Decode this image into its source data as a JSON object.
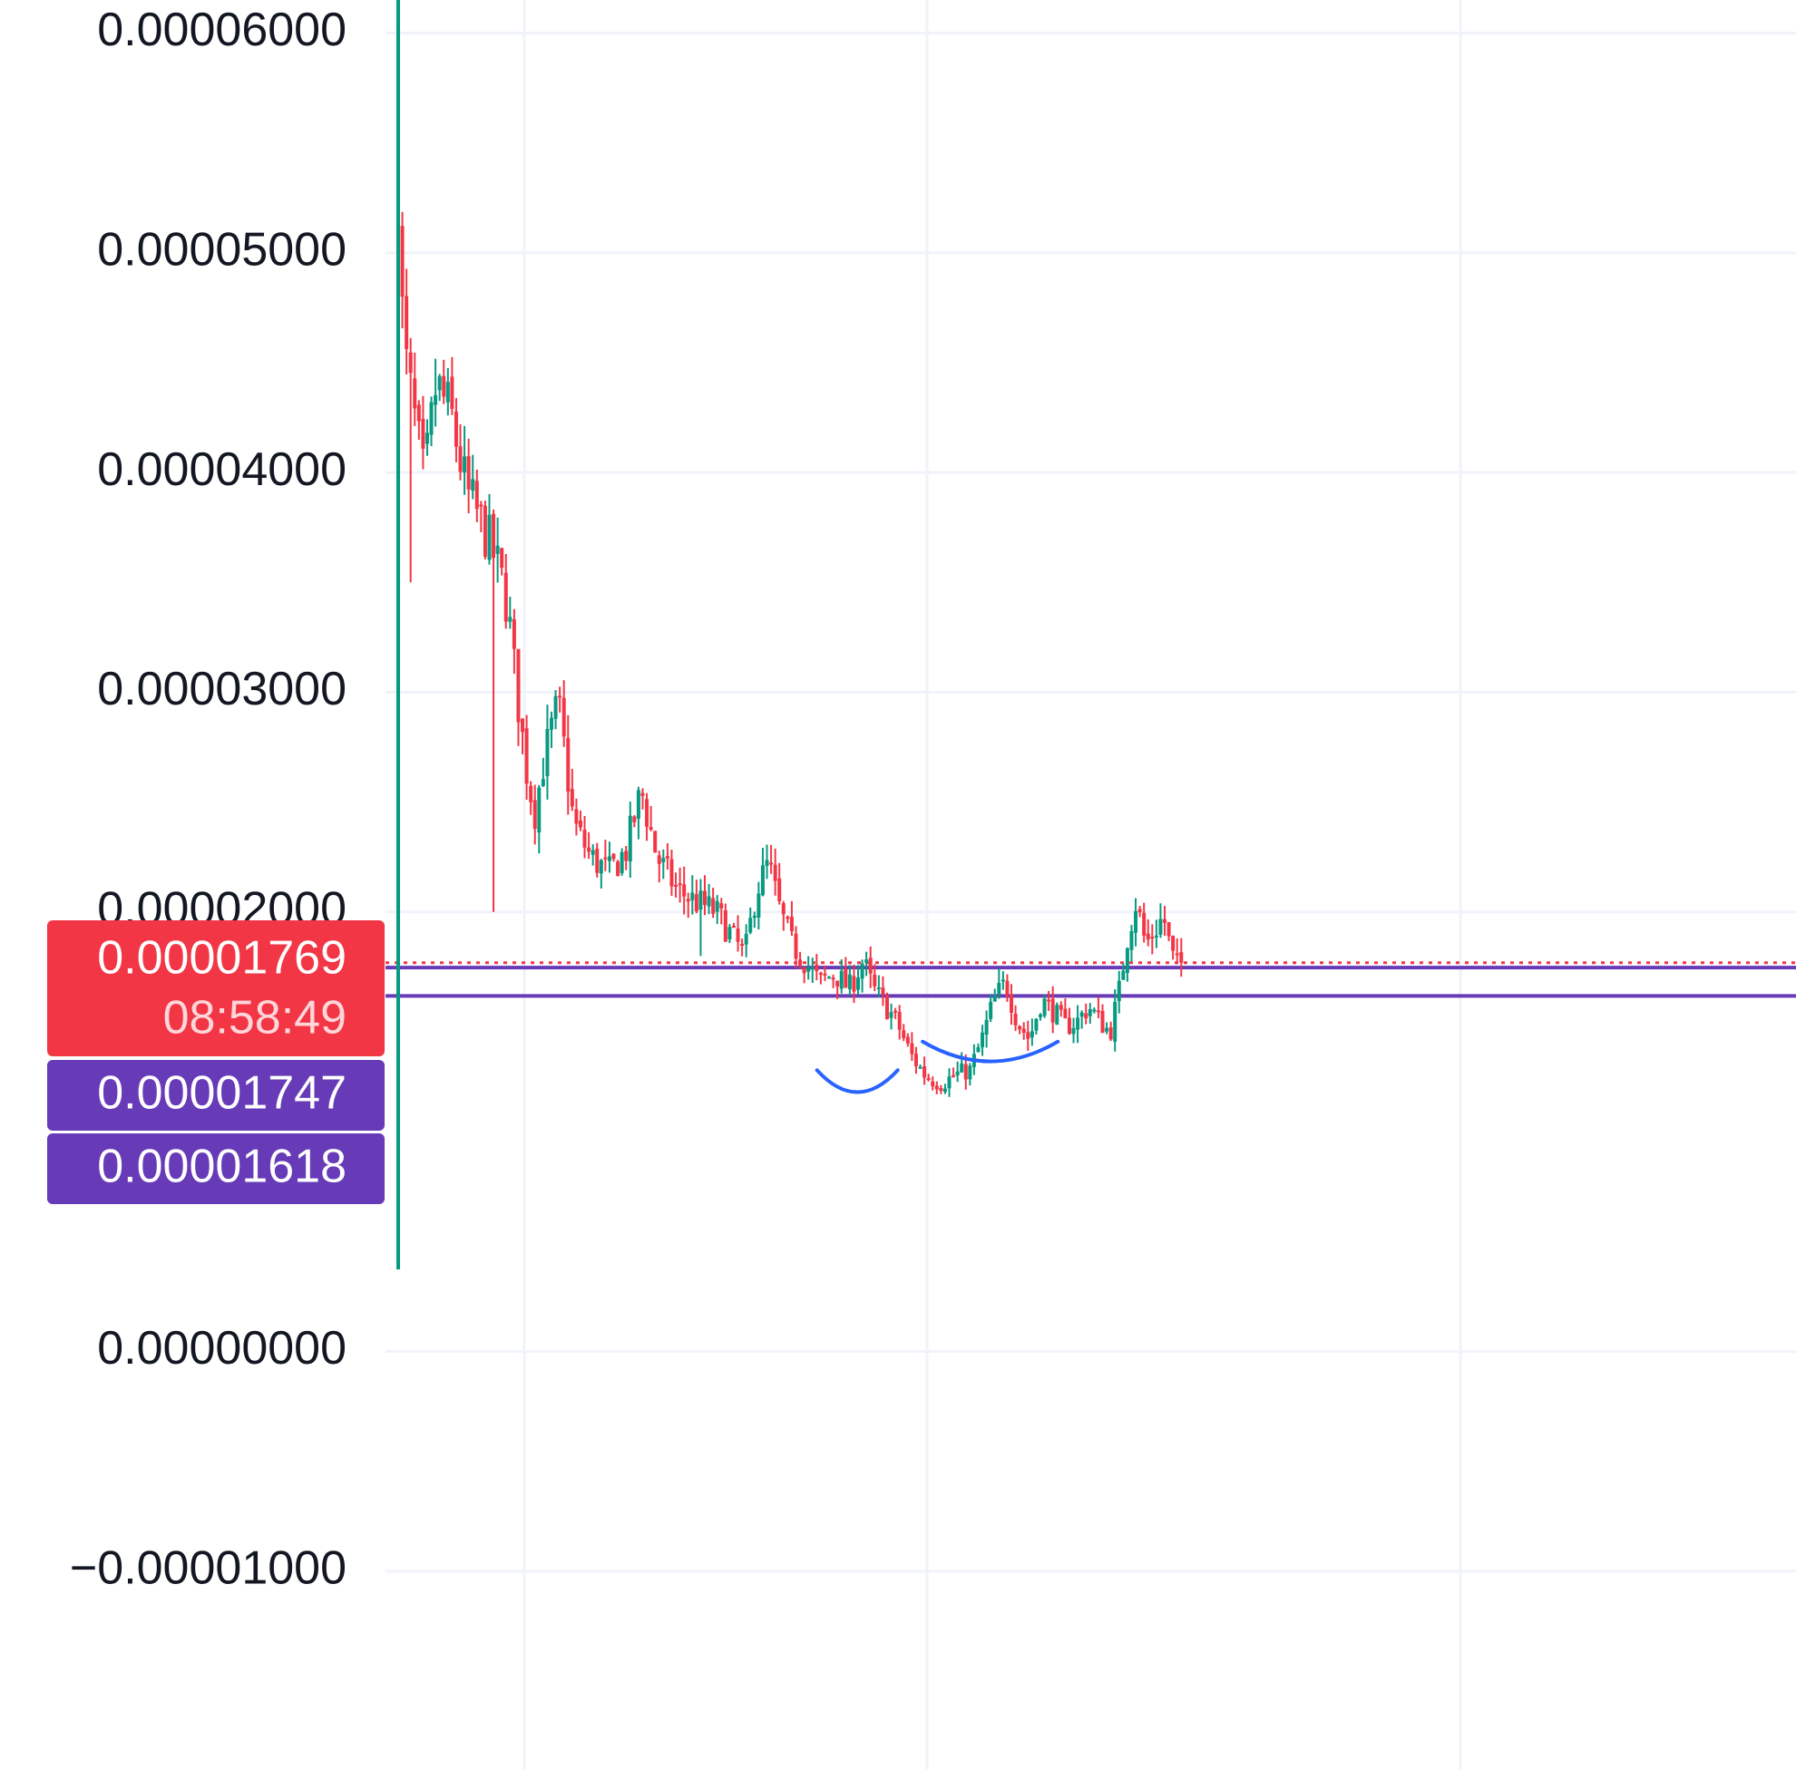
{
  "colors": {
    "up": "#089981",
    "down": "#F23645",
    "grid": "#F0F3FA",
    "level": "#673AB7",
    "pattern": "#2962FF",
    "cursor": "#089981",
    "text": "#131722",
    "price_tag": "#F23645",
    "level_tag": "#673AB7"
  },
  "chart_data": {
    "type": "candlestick",
    "ylim": [
      -1.9e-05,
      6.15e-05
    ],
    "y_ticks": [
      "0.00006000",
      "0.00005000",
      "0.00004000",
      "0.00003000",
      "0.00002000",
      "0.00000000",
      "−0.00001000"
    ],
    "y_tick_values": [
      6e-05,
      5e-05,
      4e-05,
      3e-05,
      2e-05,
      0.0,
      -1e-05
    ],
    "grid": true,
    "current_price": {
      "value": 1.769e-05,
      "label": "0.00001769",
      "countdown": "08:58:49",
      "line_style": "dotted"
    },
    "horizontal_levels": [
      {
        "value": 1.747e-05,
        "label": "0.00001747"
      },
      {
        "value": 1.618e-05,
        "label": "0.00001618"
      }
    ],
    "annotations": [
      {
        "type": "arc",
        "description": "rounded bottom",
        "x_start": 0.353,
        "x_end": 0.421,
        "y_edge": 1.28e-05,
        "y_bottom": 1.18e-05
      },
      {
        "type": "arc",
        "description": "rounded bottom",
        "x_start": 0.442,
        "x_end": 0.556,
        "y_edge": 1.41e-05,
        "y_bottom": 1.32e-05
      }
    ],
    "price_path": [
      [
        0.0,
        5.12e-05
      ],
      [
        0.005,
        4.55e-05
      ],
      [
        0.012,
        4.3e-05
      ],
      [
        0.022,
        3.95e-05
      ],
      [
        0.032,
        4.4e-05
      ],
      [
        0.045,
        4.25e-05
      ],
      [
        0.058,
        3.9e-05
      ],
      [
        0.072,
        3.75e-05
      ],
      [
        0.085,
        3.55e-05
      ],
      [
        0.092,
        3.4e-05
      ],
      [
        0.1,
        3e-05
      ],
      [
        0.108,
        2.65e-05
      ],
      [
        0.115,
        2.45e-05
      ],
      [
        0.123,
        2.7e-05
      ],
      [
        0.135,
        2.95e-05
      ],
      [
        0.148,
        2.4e-05
      ],
      [
        0.162,
        2.25e-05
      ],
      [
        0.178,
        2.18e-05
      ],
      [
        0.192,
        2.28e-05
      ],
      [
        0.205,
        2.55e-05
      ],
      [
        0.218,
        2.25e-05
      ],
      [
        0.235,
        2.1e-05
      ],
      [
        0.25,
        2.05e-05
      ],
      [
        0.268,
        2e-05
      ],
      [
        0.28,
        1.9e-05
      ],
      [
        0.292,
        1.8e-05
      ],
      [
        0.302,
        2.1e-05
      ],
      [
        0.312,
        2.22e-05
      ],
      [
        0.322,
        2e-05
      ],
      [
        0.332,
        1.85e-05
      ],
      [
        0.342,
        1.78e-05
      ],
      [
        0.355,
        1.68e-05
      ],
      [
        0.368,
        1.72e-05
      ],
      [
        0.38,
        1.65e-05
      ],
      [
        0.392,
        1.78e-05
      ],
      [
        0.4,
        1.65e-05
      ],
      [
        0.41,
        1.58e-05
      ],
      [
        0.42,
        1.5e-05
      ],
      [
        0.432,
        1.35e-05
      ],
      [
        0.445,
        1.25e-05
      ],
      [
        0.458,
        1.22e-05
      ],
      [
        0.47,
        1.26e-05
      ],
      [
        0.482,
        1.28e-05
      ],
      [
        0.492,
        1.42e-05
      ],
      [
        0.502,
        1.6e-05
      ],
      [
        0.512,
        1.68e-05
      ],
      [
        0.522,
        1.5e-05
      ],
      [
        0.532,
        1.42e-05
      ],
      [
        0.542,
        1.6e-05
      ],
      [
        0.552,
        1.55e-05
      ],
      [
        0.562,
        1.48e-05
      ],
      [
        0.572,
        1.5e-05
      ],
      [
        0.582,
        1.57e-05
      ],
      [
        0.592,
        1.5e-05
      ],
      [
        0.6,
        1.45e-05
      ],
      [
        0.608,
        1.65e-05
      ],
      [
        0.615,
        1.9e-05
      ],
      [
        0.622,
        2.05e-05
      ],
      [
        0.63,
        1.85e-05
      ],
      [
        0.638,
        1.92e-05
      ],
      [
        0.645,
        1.98e-05
      ],
      [
        0.652,
        1.8e-05
      ],
      [
        0.66,
        1.72e-05
      ]
    ]
  }
}
